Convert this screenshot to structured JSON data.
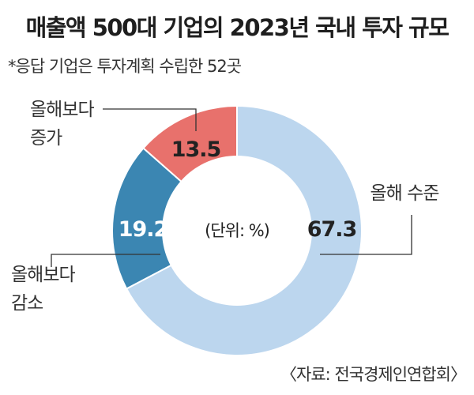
{
  "header": {
    "title": "매출액 500대 기업의 2023년 국내 투자 규모",
    "note": "*응답 기업은 투자계획 수립한 52곳"
  },
  "footer": {
    "source": "〈자료: 전국경제인연합회〉"
  },
  "chart_data": {
    "type": "pie",
    "donut": true,
    "unit_label": "(단위: %)",
    "slices": [
      {
        "label": "올해 수준",
        "label_lines": [
          "올해 수준"
        ],
        "value": 67.3,
        "value_text": "67.3",
        "color": "#bcd6ee",
        "text_color": "#222222"
      },
      {
        "label": "올해보다 감소",
        "label_lines": [
          "올해보다",
          "감소"
        ],
        "value": 19.2,
        "value_text": "19.2",
        "color": "#3b86b2",
        "text_color": "#ffffff"
      },
      {
        "label": "올해보다 증가",
        "label_lines": [
          "올해보다",
          "증가"
        ],
        "value": 13.5,
        "value_text": "13.5",
        "color": "#e8716c",
        "text_color": "#222222"
      }
    ],
    "start": "12 o'clock",
    "direction": "clockwise"
  }
}
